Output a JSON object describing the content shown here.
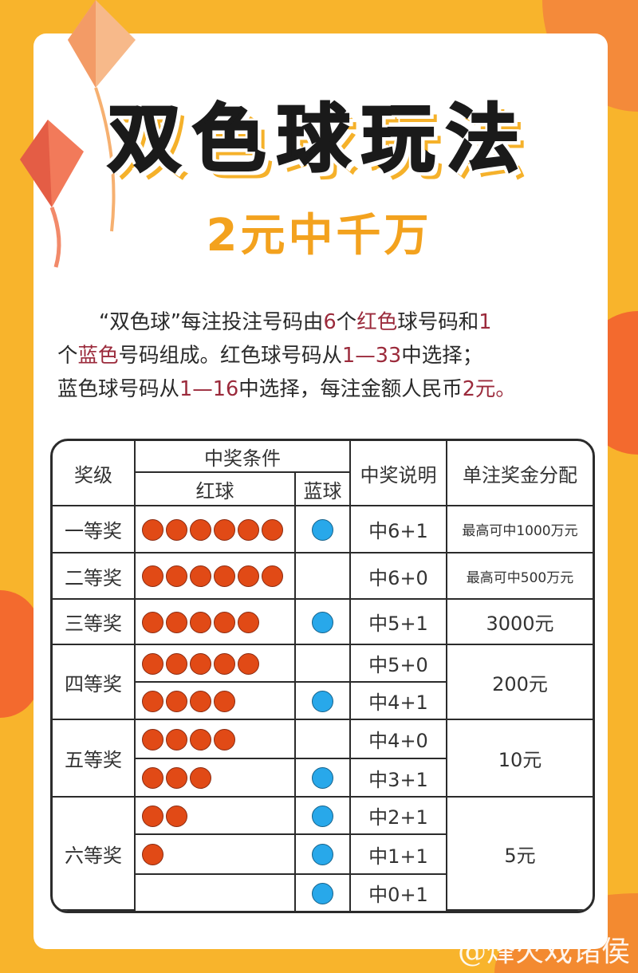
{
  "title": "双色球玩法",
  "subtitle": "2元中千万",
  "intro": {
    "line1": [
      {
        "t": "“双色球”每注投注号码由"
      },
      {
        "t": "6",
        "hl": true
      },
      {
        "t": "个"
      },
      {
        "t": "红色",
        "hl": true
      },
      {
        "t": "球号码和"
      },
      {
        "t": "1",
        "hl": true
      }
    ],
    "line2": [
      {
        "t": "个"
      },
      {
        "t": "蓝色",
        "hl": true
      },
      {
        "t": "号码组成。红色球号码从"
      },
      {
        "t": "1—33",
        "hl": true
      },
      {
        "t": "中选择；"
      }
    ],
    "line3": [
      {
        "t": "蓝色球号码从"
      },
      {
        "t": "1—16",
        "hl": true
      },
      {
        "t": "中选择，每注金额人民币"
      },
      {
        "t": "2元。",
        "hl": true
      }
    ]
  },
  "table": {
    "headers": {
      "grade": "奖级",
      "condition": "中奖条件",
      "red": "红球",
      "blue": "蓝球",
      "desc": "中奖说明",
      "prize": "单注奖金分配"
    },
    "prizes": [
      {
        "grade": "一等奖",
        "amount": "最高可中1000万元",
        "small": true,
        "combos": [
          {
            "red": 6,
            "blue": true,
            "desc": "中6+1"
          }
        ]
      },
      {
        "grade": "二等奖",
        "amount": "最高可中500万元",
        "small": true,
        "combos": [
          {
            "red": 6,
            "blue": false,
            "desc": "中6+0"
          }
        ]
      },
      {
        "grade": "三等奖",
        "amount": "3000元",
        "combos": [
          {
            "red": 5,
            "blue": true,
            "desc": "中5+1"
          }
        ]
      },
      {
        "grade": "四等奖",
        "amount": "200元",
        "combos": [
          {
            "red": 5,
            "blue": false,
            "desc": "中5+0"
          },
          {
            "red": 4,
            "blue": true,
            "desc": "中4+1"
          }
        ]
      },
      {
        "grade": "五等奖",
        "amount": "10元",
        "combos": [
          {
            "red": 4,
            "blue": false,
            "desc": "中4+0"
          },
          {
            "red": 3,
            "blue": true,
            "desc": "中3+1"
          }
        ]
      },
      {
        "grade": "六等奖",
        "amount": "5元",
        "combos": [
          {
            "red": 2,
            "blue": true,
            "desc": "中2+1"
          },
          {
            "red": 1,
            "blue": true,
            "desc": "中1+1"
          },
          {
            "red": 0,
            "blue": true,
            "desc": "中0+1"
          }
        ]
      }
    ]
  },
  "watermark": "@烽火戏诸侯",
  "colors": {
    "background": "#f8b42c",
    "red_ball": "#e14a16",
    "blue_ball": "#28a8ea",
    "highlight": "#9b2a3b",
    "subtitle": "#f3a21e"
  }
}
